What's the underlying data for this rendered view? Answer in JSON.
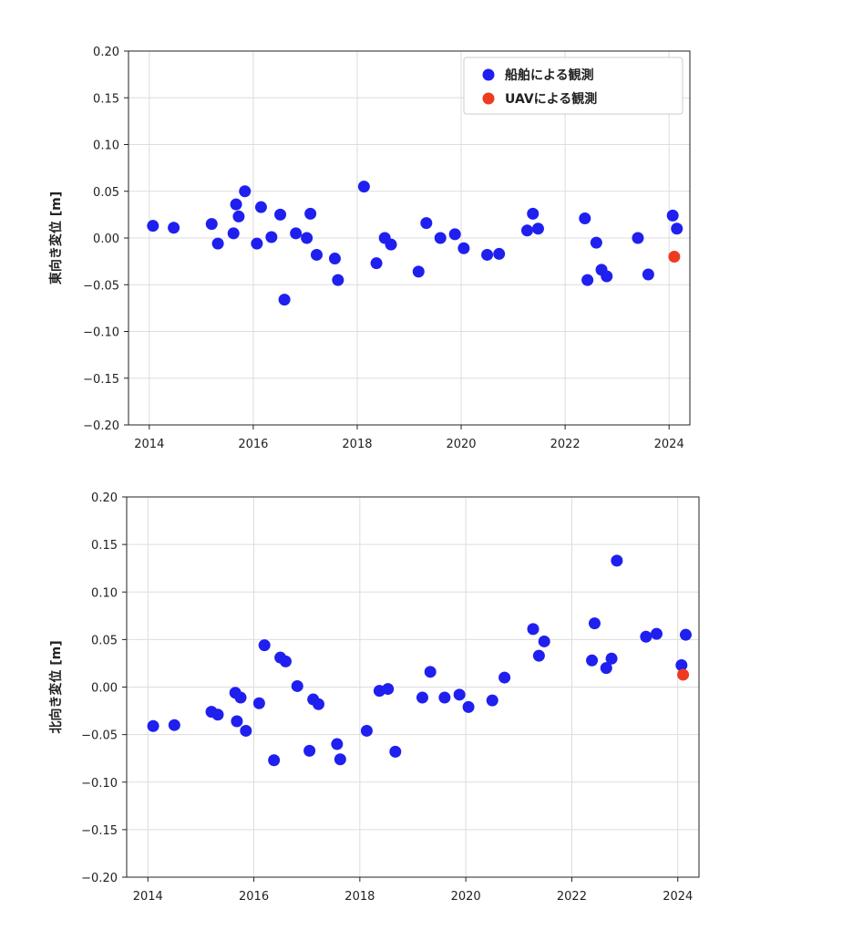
{
  "chart_data": [
    {
      "type": "scatter",
      "ylabel": "東向き変位 [m]",
      "xlim": [
        2013.6,
        2024.4
      ],
      "ylim": [
        -0.2,
        0.2
      ],
      "xticks": [
        "2014",
        "2016",
        "2018",
        "2020",
        "2022",
        "2024"
      ],
      "yticks": [
        "0.20",
        "0.15",
        "0.10",
        "0.05",
        "0.00",
        "−0.05",
        "−0.10",
        "−0.15",
        "−0.20"
      ],
      "grid": true,
      "legend": "top-right",
      "series": [
        {
          "name": "船舶による観測",
          "color": "#1f1ff0",
          "points": [
            [
              2014.07,
              0.013
            ],
            [
              2014.47,
              0.011
            ],
            [
              2015.2,
              0.015
            ],
            [
              2015.32,
              -0.006
            ],
            [
              2015.62,
              0.005
            ],
            [
              2015.67,
              0.036
            ],
            [
              2015.72,
              0.023
            ],
            [
              2015.84,
              0.05
            ],
            [
              2016.07,
              -0.006
            ],
            [
              2016.15,
              0.033
            ],
            [
              2016.35,
              0.001
            ],
            [
              2016.52,
              0.025
            ],
            [
              2016.6,
              -0.066
            ],
            [
              2016.82,
              0.005
            ],
            [
              2017.03,
              0.0
            ],
            [
              2017.1,
              0.026
            ],
            [
              2017.22,
              -0.018
            ],
            [
              2017.57,
              -0.022
            ],
            [
              2017.63,
              -0.045
            ],
            [
              2018.13,
              0.055
            ],
            [
              2018.37,
              -0.027
            ],
            [
              2018.53,
              0.0
            ],
            [
              2018.65,
              -0.007
            ],
            [
              2019.18,
              -0.036
            ],
            [
              2019.33,
              0.016
            ],
            [
              2019.6,
              0.0
            ],
            [
              2019.88,
              0.004
            ],
            [
              2020.05,
              -0.011
            ],
            [
              2020.5,
              -0.018
            ],
            [
              2020.73,
              -0.017
            ],
            [
              2021.27,
              0.008
            ],
            [
              2021.38,
              0.026
            ],
            [
              2021.48,
              0.01
            ],
            [
              2022.38,
              0.021
            ],
            [
              2022.43,
              -0.045
            ],
            [
              2022.6,
              -0.005
            ],
            [
              2022.7,
              -0.034
            ],
            [
              2022.8,
              -0.041
            ],
            [
              2023.4,
              0.0
            ],
            [
              2023.6,
              -0.039
            ],
            [
              2024.07,
              0.024
            ],
            [
              2024.15,
              0.01
            ]
          ]
        },
        {
          "name": "UAVによる観測",
          "color": "#ee3b1f",
          "points": [
            [
              2024.1,
              -0.02
            ]
          ]
        }
      ]
    },
    {
      "type": "scatter",
      "ylabel": "北向き変位 [m]",
      "xlim": [
        2013.6,
        2024.4
      ],
      "ylim": [
        -0.2,
        0.2
      ],
      "xticks": [
        "2014",
        "2016",
        "2018",
        "2020",
        "2022",
        "2024"
      ],
      "yticks": [
        "0.20",
        "0.15",
        "0.10",
        "0.05",
        "0.00",
        "−0.05",
        "−0.10",
        "−0.15",
        "−0.20"
      ],
      "grid": true,
      "series": [
        {
          "name": "船舶による観測",
          "color": "#1f1ff0",
          "points": [
            [
              2014.1,
              -0.041
            ],
            [
              2014.5,
              -0.04
            ],
            [
              2015.2,
              -0.026
            ],
            [
              2015.32,
              -0.029
            ],
            [
              2015.65,
              -0.006
            ],
            [
              2015.68,
              -0.036
            ],
            [
              2015.75,
              -0.011
            ],
            [
              2015.85,
              -0.046
            ],
            [
              2016.1,
              -0.017
            ],
            [
              2016.2,
              0.044
            ],
            [
              2016.38,
              -0.077
            ],
            [
              2016.5,
              0.031
            ],
            [
              2016.6,
              0.027
            ],
            [
              2016.82,
              0.001
            ],
            [
              2017.05,
              -0.067
            ],
            [
              2017.12,
              -0.013
            ],
            [
              2017.22,
              -0.018
            ],
            [
              2017.57,
              -0.06
            ],
            [
              2017.63,
              -0.076
            ],
            [
              2018.13,
              -0.046
            ],
            [
              2018.37,
              -0.004
            ],
            [
              2018.53,
              -0.002
            ],
            [
              2018.67,
              -0.068
            ],
            [
              2019.18,
              -0.011
            ],
            [
              2019.33,
              0.016
            ],
            [
              2019.6,
              -0.011
            ],
            [
              2019.88,
              -0.008
            ],
            [
              2020.05,
              -0.021
            ],
            [
              2020.5,
              -0.014
            ],
            [
              2020.73,
              0.01
            ],
            [
              2021.27,
              0.061
            ],
            [
              2021.38,
              0.033
            ],
            [
              2021.48,
              0.048
            ],
            [
              2022.38,
              0.028
            ],
            [
              2022.43,
              0.067
            ],
            [
              2022.65,
              0.02
            ],
            [
              2022.75,
              0.03
            ],
            [
              2022.85,
              0.133
            ],
            [
              2023.4,
              0.053
            ],
            [
              2023.6,
              0.056
            ],
            [
              2024.07,
              0.023
            ],
            [
              2024.15,
              0.055
            ]
          ]
        },
        {
          "name": "UAVによる観測",
          "color": "#ee3b1f",
          "points": [
            [
              2024.1,
              0.013
            ]
          ]
        }
      ]
    }
  ]
}
